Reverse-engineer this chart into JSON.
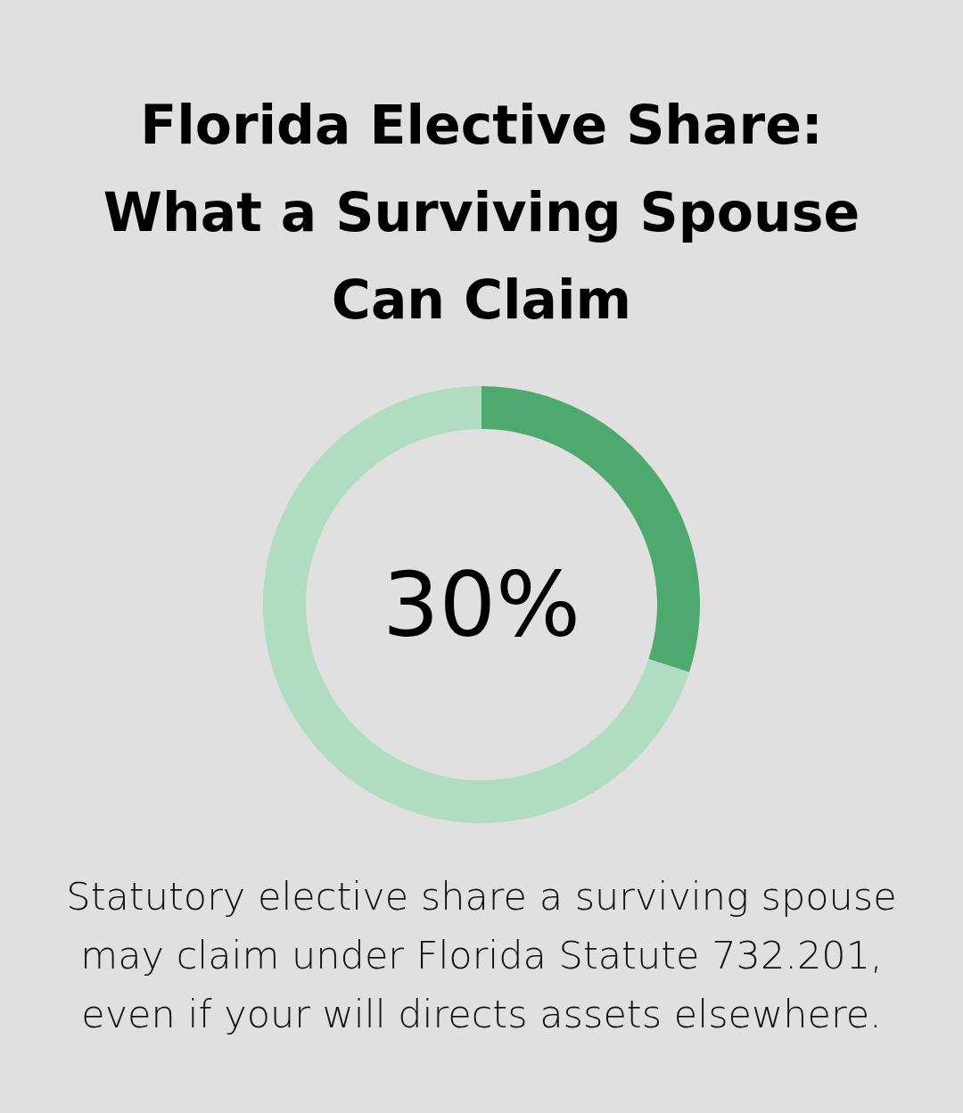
{
  "chart_data": {
    "type": "donut",
    "title": "Florida Elective Share: What a Surviving Spouse Can Claim",
    "categories": [
      null,
      null
    ],
    "values": [
      30,
      70
    ],
    "colors": [
      "#4ea96e",
      "#b0dcc2"
    ],
    "value_labels": [
      "30%",
      null
    ],
    "annotations": [
      "Statutory elective share a surviving spouse may claim under Florida Statute 732.201, even if your will directs assets elsewhere."
    ]
  }
}
